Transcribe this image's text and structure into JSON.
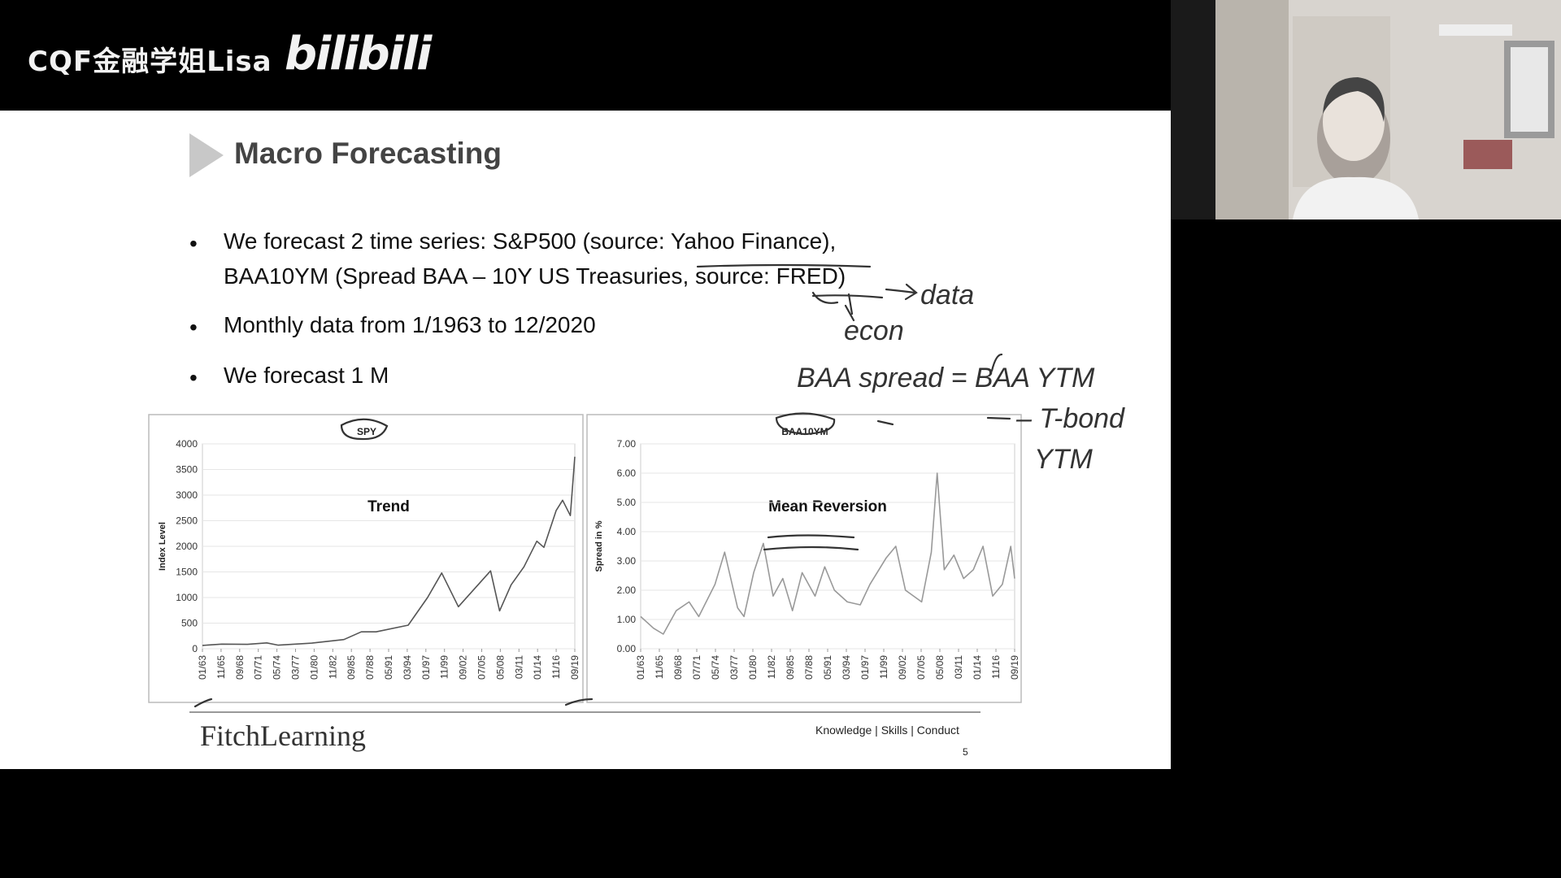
{
  "overlay": {
    "channel": "CQF金融学姐Lisa",
    "logo": "bilibili"
  },
  "slide": {
    "title": "Macro Forecasting",
    "bullets": [
      {
        "lines": [
          "We forecast 2 time series: S&P500 (source: Yahoo Finance),",
          "BAA10YM (Spread BAA – 10Y US Treasuries, source: FRED)"
        ]
      },
      {
        "lines": [
          "Monthly data from 1/1963 to 12/2020"
        ]
      },
      {
        "lines": [
          "We forecast 1 M"
        ]
      }
    ],
    "footer": {
      "brand": "FitchLearning",
      "tagline": "Knowledge | Skills | Conduct",
      "page": "5"
    }
  },
  "chart_data": [
    {
      "type": "line",
      "title": "SPY",
      "annotation": "Trend",
      "ylabel": "Index Level",
      "ylim": [
        0,
        4000
      ],
      "yticks": [
        "4000",
        "3500",
        "3000",
        "2500",
        "2000",
        "1500",
        "1000",
        "500",
        "0"
      ],
      "xticks": [
        "01/63",
        "11/65",
        "09/68",
        "07/71",
        "05/74",
        "03/77",
        "01/80",
        "11/82",
        "09/85",
        "07/88",
        "05/91",
        "03/94",
        "01/97",
        "11/99",
        "09/02",
        "07/05",
        "05/08",
        "03/11",
        "01/14",
        "11/16",
        "09/19"
      ],
      "x": [
        1963,
        1966,
        1970,
        1973,
        1974.8,
        1980,
        1985,
        1987.7,
        1990,
        1995,
        1998,
        2000.2,
        2002.8,
        2007.8,
        2009.2,
        2011,
        2013,
        2015,
        2016.1,
        2018,
        2019,
        2020.2,
        2020.9
      ],
      "y": [
        65,
        90,
        85,
        115,
        70,
        110,
        180,
        330,
        330,
        460,
        1000,
        1480,
        820,
        1520,
        740,
        1250,
        1600,
        2100,
        1980,
        2700,
        2900,
        2600,
        3750
      ],
      "color": "#555555"
    },
    {
      "type": "line",
      "title": "BAA10YM",
      "annotation": "Mean Reversion",
      "ylabel": "Spread in %",
      "ylim": [
        0,
        7
      ],
      "yticks": [
        "7.00",
        "6.00",
        "5.00",
        "4.00",
        "3.00",
        "2.00",
        "1.00",
        "0.00"
      ],
      "xticks": [
        "01/63",
        "11/65",
        "09/68",
        "07/71",
        "05/74",
        "03/77",
        "01/80",
        "11/82",
        "09/85",
        "07/88",
        "05/91",
        "03/94",
        "01/97",
        "11/99",
        "09/02",
        "07/05",
        "05/08",
        "03/11",
        "01/14",
        "11/16",
        "09/19"
      ],
      "x": [
        1963,
        1965,
        1966.5,
        1968.5,
        1970.5,
        1972,
        1974.5,
        1976,
        1978,
        1979,
        1980.5,
        1982,
        1983.5,
        1985,
        1986.5,
        1988,
        1990,
        1991.5,
        1993,
        1995,
        1997,
        1998.5,
        2001,
        2002.5,
        2004,
        2006.5,
        2008,
        2008.9,
        2010,
        2011.5,
        2013,
        2014.5,
        2016,
        2017.5,
        2019,
        2020.3,
        2020.9
      ],
      "y": [
        1.1,
        0.7,
        0.5,
        1.3,
        1.6,
        1.1,
        2.2,
        3.3,
        1.4,
        1.1,
        2.6,
        3.6,
        1.8,
        2.4,
        1.3,
        2.6,
        1.8,
        2.8,
        2.0,
        1.6,
        1.5,
        2.2,
        3.1,
        3.5,
        2.0,
        1.6,
        3.3,
        6.0,
        2.7,
        3.2,
        2.4,
        2.7,
        3.5,
        1.8,
        2.2,
        3.5,
        2.4
      ],
      "color": "#999999"
    }
  ],
  "annotations": {
    "handwriting": [
      "data",
      "econ",
      "BAA spread = BAA YTM",
      "– T-bond",
      "YTM"
    ]
  }
}
